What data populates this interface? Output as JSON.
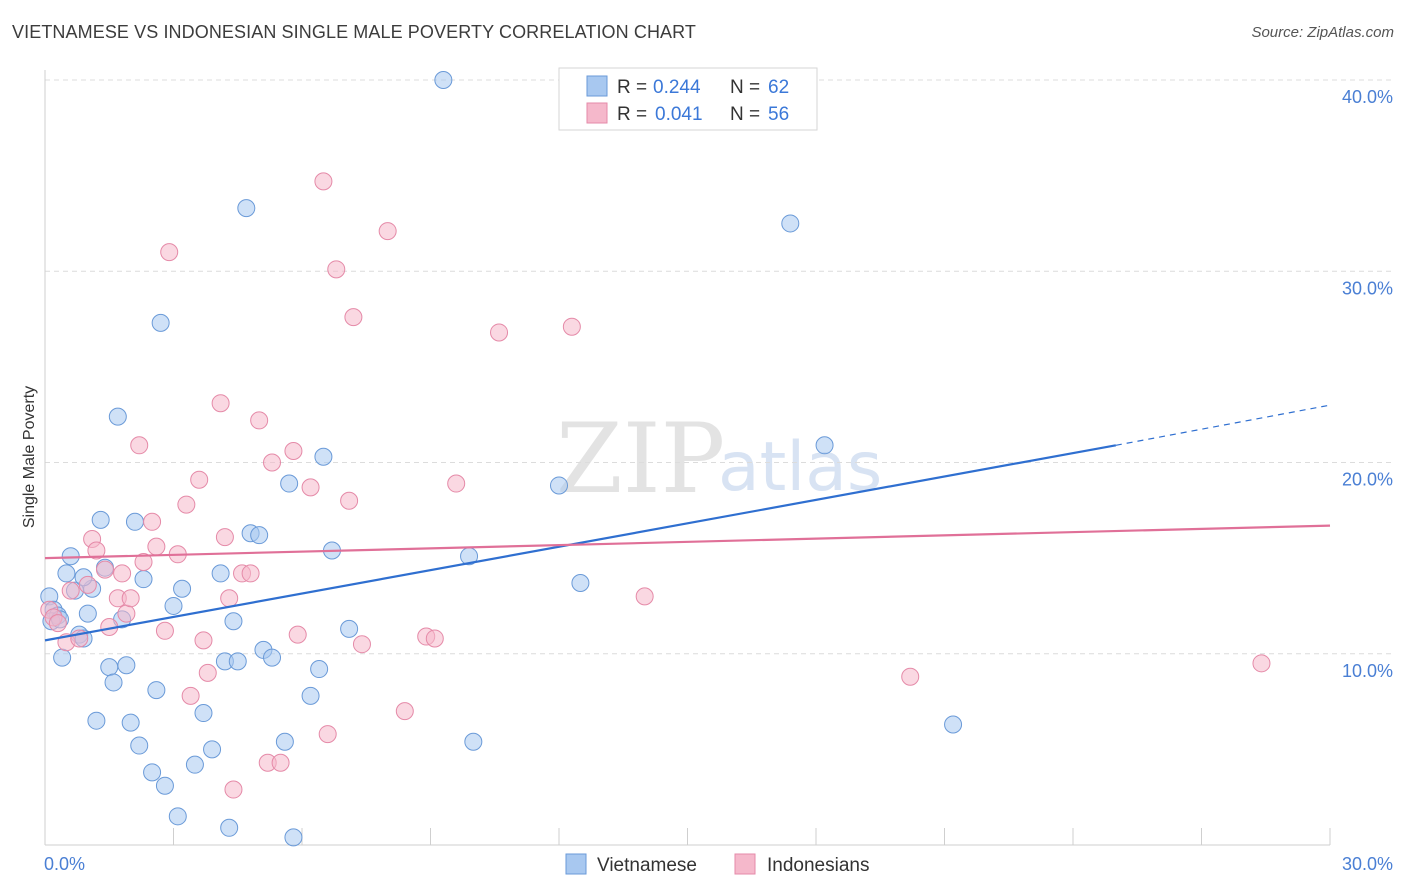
{
  "header": {
    "title": "VIETNAMESE VS INDONESIAN SINGLE MALE POVERTY CORRELATION CHART",
    "source": "Source: ZipAtlas.com"
  },
  "watermark": {
    "zip": "ZIP",
    "atlas": "atlas"
  },
  "legend": {
    "rows": [
      {
        "r_label": "R = ",
        "r_value": "0.244",
        "n_label": "N = ",
        "n_value": "62",
        "color": "#a8c8f0"
      },
      {
        "r_label": "R = ",
        "r_value": "0.041",
        "n_label": "N = ",
        "n_value": "56",
        "color": "#f5b8cb"
      }
    ]
  },
  "chart_data": {
    "type": "scatter",
    "title": "VIETNAMESE VS INDONESIAN SINGLE MALE POVERTY CORRELATION CHART",
    "xlabel": "",
    "ylabel": "Single Male Poverty",
    "xlim": [
      0,
      30
    ],
    "ylim": [
      0,
      40
    ],
    "x_ticks": [
      "0.0%",
      "30.0%"
    ],
    "y_ticks": [
      {
        "value": 10,
        "label": "10.0%"
      },
      {
        "value": 20,
        "label": "20.0%"
      },
      {
        "value": 30,
        "label": "30.0%"
      },
      {
        "value": 40,
        "label": "40.0%"
      }
    ],
    "grid": true,
    "legend_position": "top-center",
    "series": [
      {
        "name": "Vietnamese",
        "color": "#a8c8f0",
        "stroke": "#6a9ad8",
        "trend_color": "#2f6fd0",
        "trend": {
          "x0": 0,
          "y0": 10.7,
          "x1": 25,
          "y1": 20.9,
          "dash_to_x": 30,
          "dash_to_y": 23.0
        },
        "points": [
          [
            0.1,
            13.0
          ],
          [
            0.2,
            12.3
          ],
          [
            0.3,
            12.0
          ],
          [
            0.4,
            9.8
          ],
          [
            0.5,
            14.2
          ],
          [
            0.6,
            15.1
          ],
          [
            0.7,
            13.3
          ],
          [
            0.8,
            11.0
          ],
          [
            0.9,
            10.8
          ],
          [
            1.0,
            12.1
          ],
          [
            1.1,
            13.4
          ],
          [
            1.2,
            6.5
          ],
          [
            1.3,
            17.0
          ],
          [
            1.4,
            14.5
          ],
          [
            1.5,
            9.3
          ],
          [
            1.6,
            8.5
          ],
          [
            1.7,
            22.4
          ],
          [
            1.8,
            11.8
          ],
          [
            1.9,
            9.4
          ],
          [
            2.0,
            6.4
          ],
          [
            2.1,
            16.9
          ],
          [
            2.3,
            13.9
          ],
          [
            2.2,
            5.2
          ],
          [
            2.5,
            3.8
          ],
          [
            2.6,
            8.1
          ],
          [
            2.7,
            27.3
          ],
          [
            2.8,
            3.1
          ],
          [
            3.0,
            12.5
          ],
          [
            3.1,
            1.5
          ],
          [
            3.2,
            13.4
          ],
          [
            3.5,
            4.2
          ],
          [
            3.7,
            6.9
          ],
          [
            3.9,
            5.0
          ],
          [
            4.2,
            9.6
          ],
          [
            4.3,
            0.9
          ],
          [
            4.4,
            11.7
          ],
          [
            4.5,
            9.6
          ],
          [
            4.7,
            33.3
          ],
          [
            4.8,
            16.3
          ],
          [
            5.1,
            10.2
          ],
          [
            5.3,
            9.8
          ],
          [
            5.6,
            5.4
          ],
          [
            5.7,
            18.9
          ],
          [
            5.8,
            0.4
          ],
          [
            6.2,
            7.8
          ],
          [
            6.4,
            9.2
          ],
          [
            6.5,
            20.3
          ],
          [
            6.7,
            15.4
          ],
          [
            7.1,
            11.3
          ],
          [
            9.3,
            40.0
          ],
          [
            9.9,
            15.1
          ],
          [
            10.0,
            5.4
          ],
          [
            12.0,
            18.8
          ],
          [
            12.5,
            13.7
          ],
          [
            17.4,
            32.5
          ],
          [
            18.2,
            20.9
          ],
          [
            21.2,
            6.3
          ],
          [
            0.15,
            11.7
          ],
          [
            0.35,
            11.8
          ],
          [
            0.9,
            14.0
          ],
          [
            4.1,
            14.2
          ],
          [
            5.0,
            16.2
          ]
        ]
      },
      {
        "name": "Indonesians",
        "color": "#f5b8cb",
        "stroke": "#e58aa8",
        "trend_color": "#e07098",
        "trend": {
          "x0": 0,
          "y0": 15.0,
          "x1": 30,
          "y1": 16.7
        },
        "points": [
          [
            0.1,
            12.3
          ],
          [
            0.2,
            11.9
          ],
          [
            0.3,
            11.6
          ],
          [
            0.5,
            10.6
          ],
          [
            0.6,
            13.3
          ],
          [
            0.8,
            10.8
          ],
          [
            1.0,
            13.6
          ],
          [
            1.1,
            16.0
          ],
          [
            1.2,
            15.4
          ],
          [
            1.4,
            14.4
          ],
          [
            1.5,
            11.4
          ],
          [
            1.7,
            12.9
          ],
          [
            1.8,
            14.2
          ],
          [
            1.9,
            12.1
          ],
          [
            2.0,
            12.9
          ],
          [
            2.2,
            20.9
          ],
          [
            2.3,
            14.8
          ],
          [
            2.5,
            16.9
          ],
          [
            2.6,
            15.6
          ],
          [
            2.8,
            11.2
          ],
          [
            2.9,
            31.0
          ],
          [
            3.1,
            15.2
          ],
          [
            3.3,
            17.8
          ],
          [
            3.4,
            7.8
          ],
          [
            3.6,
            19.1
          ],
          [
            3.7,
            10.7
          ],
          [
            3.8,
            9.0
          ],
          [
            4.1,
            23.1
          ],
          [
            4.2,
            16.1
          ],
          [
            4.3,
            12.9
          ],
          [
            4.6,
            14.2
          ],
          [
            4.8,
            14.2
          ],
          [
            5.0,
            22.2
          ],
          [
            5.2,
            4.3
          ],
          [
            5.3,
            20.0
          ],
          [
            5.5,
            4.3
          ],
          [
            5.8,
            20.6
          ],
          [
            5.9,
            11.0
          ],
          [
            6.2,
            18.7
          ],
          [
            6.5,
            34.7
          ],
          [
            6.6,
            5.8
          ],
          [
            6.8,
            30.1
          ],
          [
            7.1,
            18.0
          ],
          [
            7.2,
            27.6
          ],
          [
            7.4,
            10.5
          ],
          [
            8.0,
            32.1
          ],
          [
            8.4,
            7.0
          ],
          [
            8.9,
            10.9
          ],
          [
            9.1,
            10.8
          ],
          [
            9.6,
            18.9
          ],
          [
            10.6,
            26.8
          ],
          [
            12.3,
            27.1
          ],
          [
            14.0,
            13.0
          ],
          [
            20.2,
            8.8
          ],
          [
            28.4,
            9.5
          ],
          [
            4.4,
            2.9
          ]
        ]
      }
    ]
  },
  "bottom_legend": {
    "items": [
      {
        "label": "Vietnamese",
        "color": "#a8c8f0"
      },
      {
        "label": "Indonesians",
        "color": "#f5b8cb"
      }
    ]
  }
}
